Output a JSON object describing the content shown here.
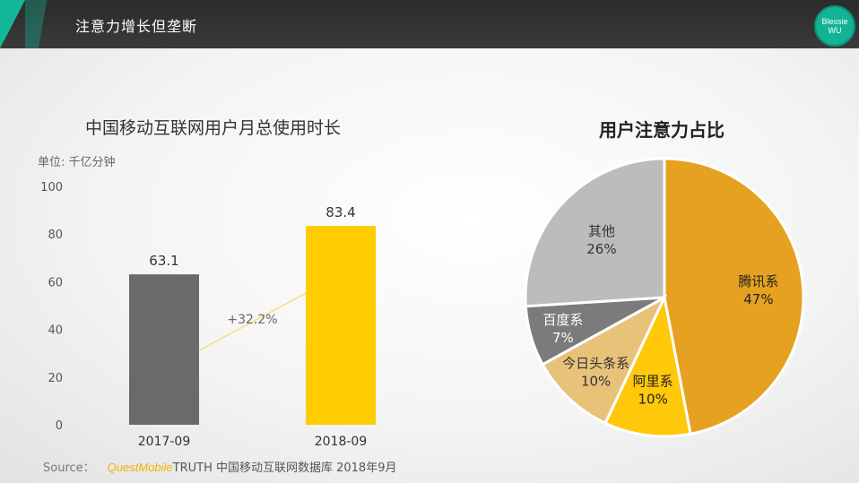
{
  "header": {
    "title": "注意力增长但垄断",
    "badge_line1": "Blessie",
    "badge_line2": "WU"
  },
  "colors": {
    "accent": "#13b89a",
    "bar_2017": "#6b6a6a",
    "bar_2018": "#ffcc00",
    "pie_tencent": "#e5a11f",
    "pie_alibaba": "#ffc80a",
    "pie_toutiao": "#e9c27a",
    "pie_baidu": "#7c7b7b",
    "pie_other": "#bdbcbc"
  },
  "source": {
    "prefix": "Source：",
    "brand": "QuestMobile",
    "rest": "TRUTH 中国移动互联网数据库 2018年9月"
  },
  "chart_data": [
    {
      "type": "bar",
      "title": "中国移动互联网用户月总使用时长",
      "unit": "单位: 千亿分钟",
      "categories": [
        "2017-09",
        "2018-09"
      ],
      "values": [
        63.1,
        83.4
      ],
      "value_labels": [
        "63.1",
        "83.4"
      ],
      "yticks": [
        "0",
        "20",
        "40",
        "60",
        "80",
        "100"
      ],
      "ylim": [
        0,
        100
      ],
      "annotation": "+32.2%"
    },
    {
      "type": "pie",
      "title": "用户注意力占比",
      "slices": [
        {
          "name": "腾讯系",
          "value": 47,
          "label": "47%"
        },
        {
          "name": "阿里系",
          "value": 10,
          "label": "10%"
        },
        {
          "name": "今日头条系",
          "value": 10,
          "label": "10%"
        },
        {
          "name": "百度系",
          "value": 7,
          "label": "7%"
        },
        {
          "name": "其他",
          "value": 26,
          "label": "26%"
        }
      ]
    }
  ]
}
